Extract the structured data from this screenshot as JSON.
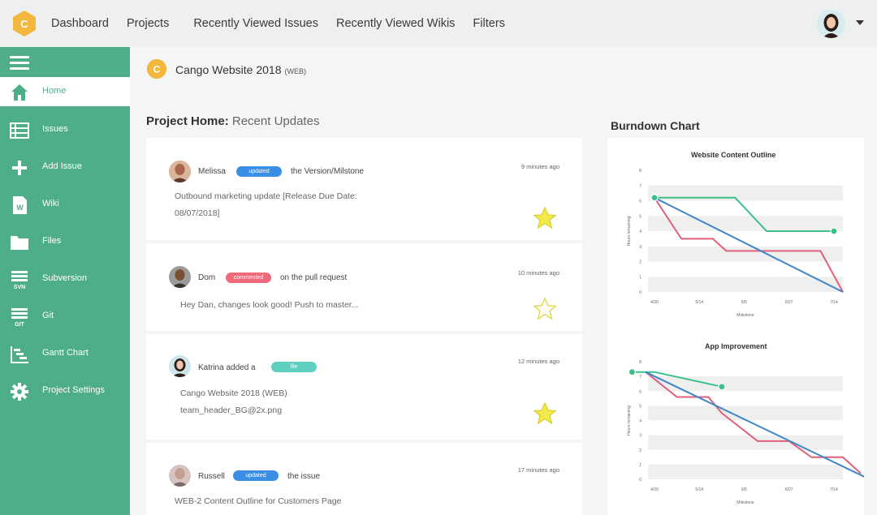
{
  "nav": {
    "logo_letter": "C",
    "items": [
      "Dashboard",
      "Projects",
      "Recently Viewed Issues",
      "Recently Viewed Wikis",
      "Filters"
    ]
  },
  "sidebar": {
    "items": [
      {
        "label": "Home",
        "icon": "home-icon"
      },
      {
        "label": "Issues",
        "icon": "list-icon"
      },
      {
        "label": "Add Issue",
        "icon": "plus-icon"
      },
      {
        "label": "Wiki",
        "icon": "wiki-icon",
        "icon_text": "W"
      },
      {
        "label": "Files",
        "icon": "folder-icon"
      },
      {
        "label": "Subversion",
        "icon": "svn-icon",
        "icon_text": "SVN"
      },
      {
        "label": "Git",
        "icon": "git-icon",
        "icon_text": "GIT"
      },
      {
        "label": "Gantt Chart",
        "icon": "gantt-icon"
      },
      {
        "label": "Project Settings",
        "icon": "gear-icon"
      }
    ]
  },
  "project": {
    "title": "Cango Website 2018",
    "key": "(WEB)",
    "logo_letter": "C"
  },
  "updates": {
    "heading_bold": "Project Home:",
    "heading_rest": "Recent Updates",
    "items": [
      {
        "user": "Melissa",
        "badge": "updated",
        "action": "the Version/Milstone",
        "time": "9 minutes ago",
        "body_lines": [
          "Outbound marketing update [Release Due Date:",
          "08/07/2018]"
        ],
        "starred": true
      },
      {
        "user": "Dom",
        "badge": "commented",
        "action": "on the pull request",
        "time": "10 minutes ago",
        "body_lines": [
          "Hey Dan, changes look good!  Push to master..."
        ],
        "starred": false
      },
      {
        "user": "Katrina added a",
        "badge": "file",
        "action": "",
        "time": "12 minutes ago",
        "body_lines": [
          "Cango Website 2018 (WEB)",
          "team_header_BG@2x.png"
        ],
        "starred": true
      },
      {
        "user": "Russell",
        "badge": "updated",
        "action": "the issue",
        "time": "17 minutes ago",
        "body_lines": [
          "WEB-2 Content Outline for Customers Page"
        ],
        "starred": false
      }
    ]
  },
  "colors": {
    "sidebar": "#4fae8a",
    "badge_blue": "#3a8ee6",
    "badge_red": "#ef6b7b",
    "badge_teal": "#5fcfc0",
    "line_green": "#3cc08a",
    "line_red": "#e0607a",
    "line_blue": "#3f86c8",
    "star": "#f2ea4a"
  },
  "burndown": {
    "title": "Burndown Chart"
  },
  "chart_data": [
    {
      "type": "line",
      "title": "Website Content Outline",
      "xlabel": "Milestone",
      "ylabel": "Hours remaining",
      "x": [
        "4/30",
        "5/14",
        "6/5",
        "6/27",
        "7/14"
      ],
      "ylim": [
        0,
        8
      ],
      "yticks": [
        0,
        1,
        2,
        3,
        4,
        5,
        6,
        7,
        8
      ],
      "series": [
        {
          "color": "#3cc08a",
          "points": [
            [
              0,
              6.2
            ],
            [
              1.8,
              6.2
            ],
            [
              2.5,
              4
            ],
            [
              4,
              4
            ]
          ]
        },
        {
          "color": "#e0607a",
          "points": [
            [
              0,
              6.2
            ],
            [
              0.6,
              3.5
            ],
            [
              1.3,
              3.5
            ],
            [
              1.6,
              2.7
            ],
            [
              3.7,
              2.7
            ],
            [
              4.2,
              0
            ]
          ]
        },
        {
          "color": "#3f86c8",
          "points": [
            [
              0,
              6.2
            ],
            [
              4.2,
              0
            ]
          ]
        }
      ]
    },
    {
      "type": "line",
      "title": "App Improvement",
      "xlabel": "Milestone",
      "ylabel": "Hours remaining",
      "x": [
        "4/30",
        "5/14",
        "6/5",
        "6/27",
        "7/14"
      ],
      "ylim": [
        0,
        8
      ],
      "yticks": [
        0,
        1,
        2,
        3,
        4,
        5,
        6,
        7,
        8
      ],
      "series": [
        {
          "color": "#3cc08a",
          "points": [
            [
              -0.5,
              7.3
            ],
            [
              0,
              7.3
            ],
            [
              1.5,
              6.3
            ]
          ]
        },
        {
          "color": "#e0607a",
          "points": [
            [
              -0.2,
              7.3
            ],
            [
              0.5,
              5.6
            ],
            [
              1.2,
              5.6
            ],
            [
              1.5,
              4.5
            ],
            [
              2.3,
              2.6
            ],
            [
              3,
              2.6
            ],
            [
              3.5,
              1.5
            ],
            [
              4.2,
              1.5
            ],
            [
              4.6,
              0.4
            ]
          ]
        },
        {
          "color": "#3f86c8",
          "points": [
            [
              -0.2,
              7.3
            ],
            [
              4.8,
              0
            ]
          ]
        }
      ]
    }
  ]
}
